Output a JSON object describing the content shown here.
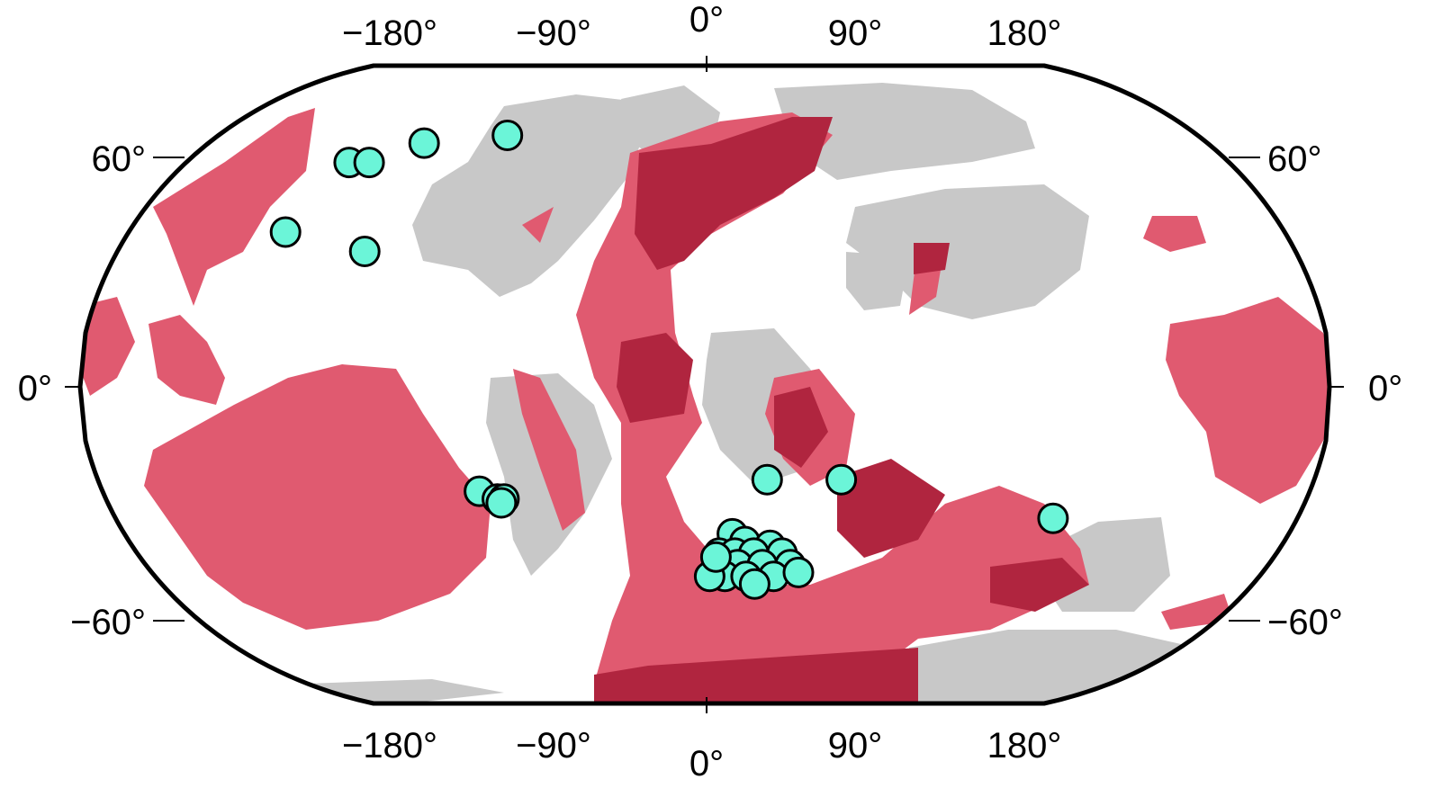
{
  "map": {
    "projection": "Robinson",
    "colors": {
      "ocean": "#ffffff",
      "land": "#c8c8c8",
      "basin": "#e05a70",
      "basin_overlap": "#b0253f",
      "point": "#6bf5d8",
      "frame": "#000000"
    },
    "top_ticks": [
      "−180°",
      "−90°",
      "0°",
      "90°",
      "180°"
    ],
    "bottom_ticks": [
      "−180°",
      "−90°",
      "0°",
      "90°",
      "180°"
    ],
    "left_ticks": [
      "60°",
      "0°",
      "−60°"
    ],
    "right_ticks": [
      "60°",
      "0°",
      "−60°"
    ],
    "points": [
      {
        "lon": -125,
        "lat": 58
      },
      {
        "lon": -118,
        "lat": 58
      },
      {
        "lon": -103,
        "lat": 63
      },
      {
        "lon": -74,
        "lat": 65
      },
      {
        "lon": -132,
        "lat": 40
      },
      {
        "lon": -105,
        "lat": 35
      },
      {
        "lon": -68,
        "lat": -27
      },
      {
        "lon": -63,
        "lat": -29
      },
      {
        "lon": -61,
        "lat": -29
      },
      {
        "lon": -62,
        "lat": -30
      },
      {
        "lon": 18,
        "lat": -24
      },
      {
        "lon": 40,
        "lat": -24
      },
      {
        "lon": 106,
        "lat": -34
      },
      {
        "lon": 8,
        "lat": -38
      },
      {
        "lon": 12,
        "lat": -40
      },
      {
        "lon": 20,
        "lat": -41
      },
      {
        "lon": 4,
        "lat": -43
      },
      {
        "lon": 9,
        "lat": -43
      },
      {
        "lon": 15,
        "lat": -43
      },
      {
        "lon": 24,
        "lat": -43
      },
      {
        "lon": 3,
        "lat": -47
      },
      {
        "lon": 10,
        "lat": -46
      },
      {
        "lon": 18,
        "lat": -46
      },
      {
        "lon": 27,
        "lat": -46
      },
      {
        "lon": 6,
        "lat": -49
      },
      {
        "lon": 13,
        "lat": -49
      },
      {
        "lon": 22,
        "lat": -49
      },
      {
        "lon": 30,
        "lat": -48
      },
      {
        "lon": 1,
        "lat": -49
      },
      {
        "lon": 16,
        "lat": -51
      },
      {
        "lon": 3,
        "lat": -44
      }
    ]
  }
}
